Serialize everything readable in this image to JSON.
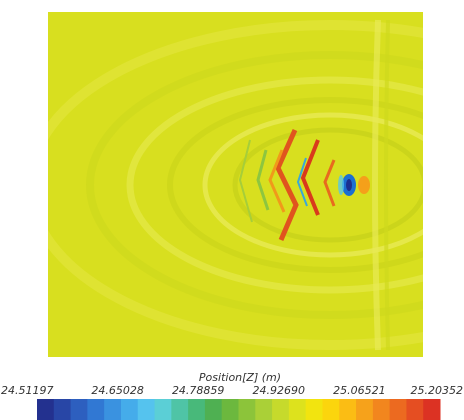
{
  "colorbar": {
    "title": "Position[Z] (m)",
    "ticks": [
      "24.51197",
      "24.65028",
      "24.78859",
      "24.92690",
      "25.06521",
      "25.20352"
    ]
  }
}
